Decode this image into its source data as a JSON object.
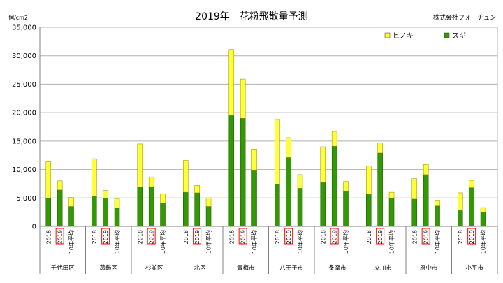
{
  "chart_data": {
    "type": "bar",
    "stacked": true,
    "title": "2019年　花粉飛散量予測",
    "company": "株式会社フォーチュン",
    "unit_label": "個/cm2",
    "ylim": [
      0,
      35000
    ],
    "yticks": [
      "0",
      "5,000",
      "10,000",
      "15,000",
      "20,000",
      "25,000",
      "30,000",
      "35,000"
    ],
    "grid": true,
    "legend_position": "top-right",
    "highlight_label": "2019",
    "groups": [
      "千代田区",
      "葛飾区",
      "杉並区",
      "北区",
      "青梅市",
      "八王子市",
      "多摩市",
      "立川市",
      "府中市",
      "小平市"
    ],
    "sublabels": [
      "2018",
      "2019",
      "10年平均"
    ],
    "series": [
      {
        "name": "スギ",
        "color": "#339900",
        "values": [
          [
            5000,
            6400,
            3500
          ],
          [
            5300,
            5000,
            3200
          ],
          [
            6900,
            6900,
            4100
          ],
          [
            6000,
            5900,
            3500
          ],
          [
            19500,
            19000,
            9800
          ],
          [
            7400,
            12100,
            6700
          ],
          [
            7700,
            14100,
            6200
          ],
          [
            5700,
            12900,
            5000
          ],
          [
            4800,
            9100,
            3600
          ],
          [
            2800,
            6800,
            2500
          ]
        ]
      },
      {
        "name": "ヒノキ",
        "color": "#ffff33",
        "values": [
          [
            6400,
            1600,
            1600
          ],
          [
            6600,
            1300,
            1700
          ],
          [
            7600,
            1800,
            1600
          ],
          [
            5600,
            1300,
            1500
          ],
          [
            11600,
            6900,
            3800
          ],
          [
            11400,
            3500,
            2400
          ],
          [
            6300,
            2600,
            1700
          ],
          [
            4900,
            1800,
            1000
          ],
          [
            3600,
            1800,
            1000
          ],
          [
            3100,
            1300,
            800
          ]
        ]
      }
    ]
  }
}
